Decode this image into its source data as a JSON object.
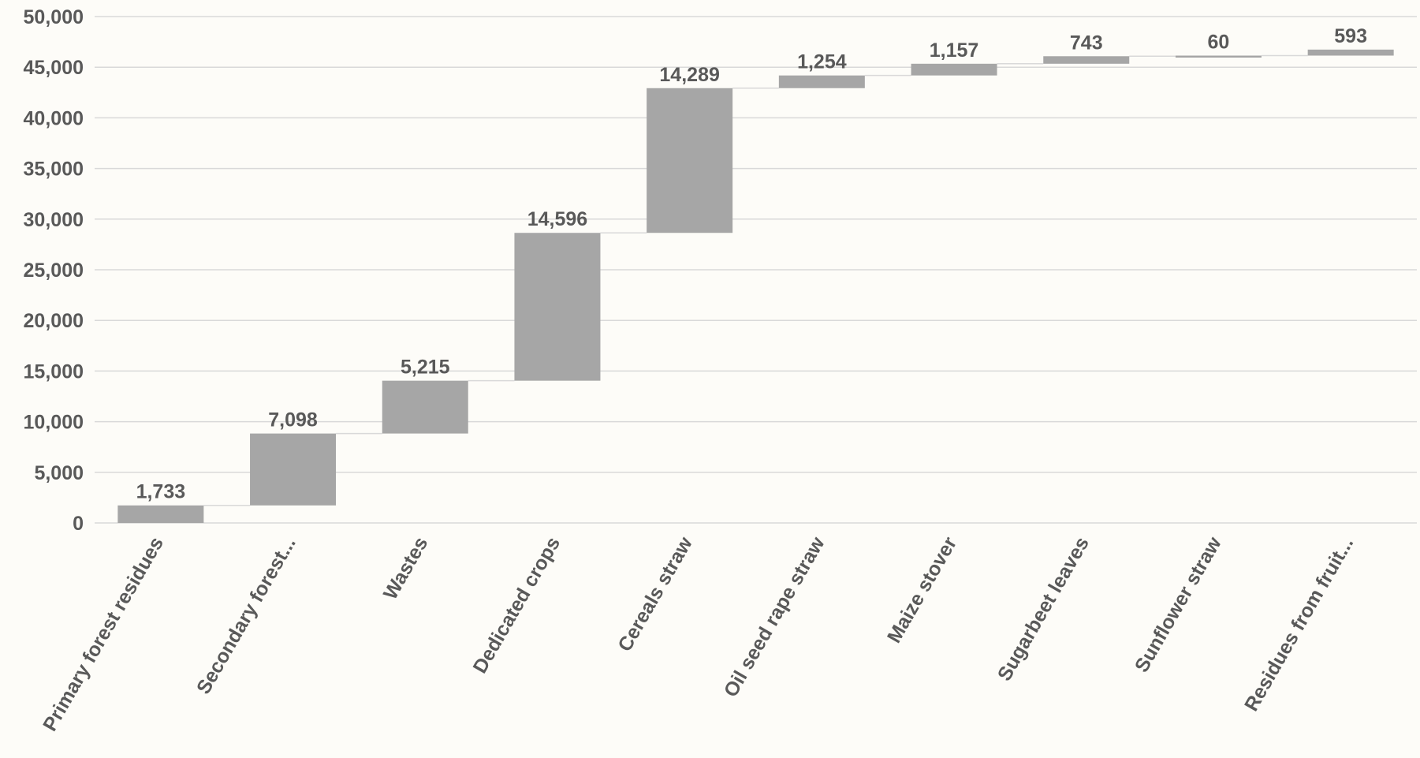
{
  "chart_data": {
    "type": "bar",
    "subtype": "waterfall",
    "title": "",
    "xlabel": "",
    "ylabel": "",
    "categories": [
      "Primary forest residues",
      "Secondary forest...",
      "Wastes",
      "Dedicated crops",
      "Cereals straw",
      "Oil seed rape straw",
      "Maize stover",
      "Sugarbeet leaves",
      "Sunflower straw",
      "Residues from fruit..."
    ],
    "values": [
      1733,
      7098,
      5215,
      14596,
      14289,
      1254,
      1157,
      743,
      60,
      593
    ],
    "data_labels": [
      "1,733",
      "7,098",
      "5,215",
      "14,596",
      "14,289",
      "1,254",
      "1,157",
      "743",
      "60",
      "593"
    ],
    "ylim": [
      0,
      50000
    ],
    "yticks": [
      0,
      5000,
      10000,
      15000,
      20000,
      25000,
      30000,
      35000,
      40000,
      45000,
      50000
    ],
    "ytick_labels": [
      "0",
      "5,000",
      "10,000",
      "15,000",
      "20,000",
      "25,000",
      "30,000",
      "35,000",
      "40,000",
      "45,000",
      "50,000"
    ],
    "grid": true,
    "legend": "none",
    "colors": {
      "bar": "#a6a6a6",
      "gridline": "#d9d9d9",
      "connector": "#d9d9d9",
      "text": "#595959",
      "background": "#fdfcf8"
    }
  }
}
